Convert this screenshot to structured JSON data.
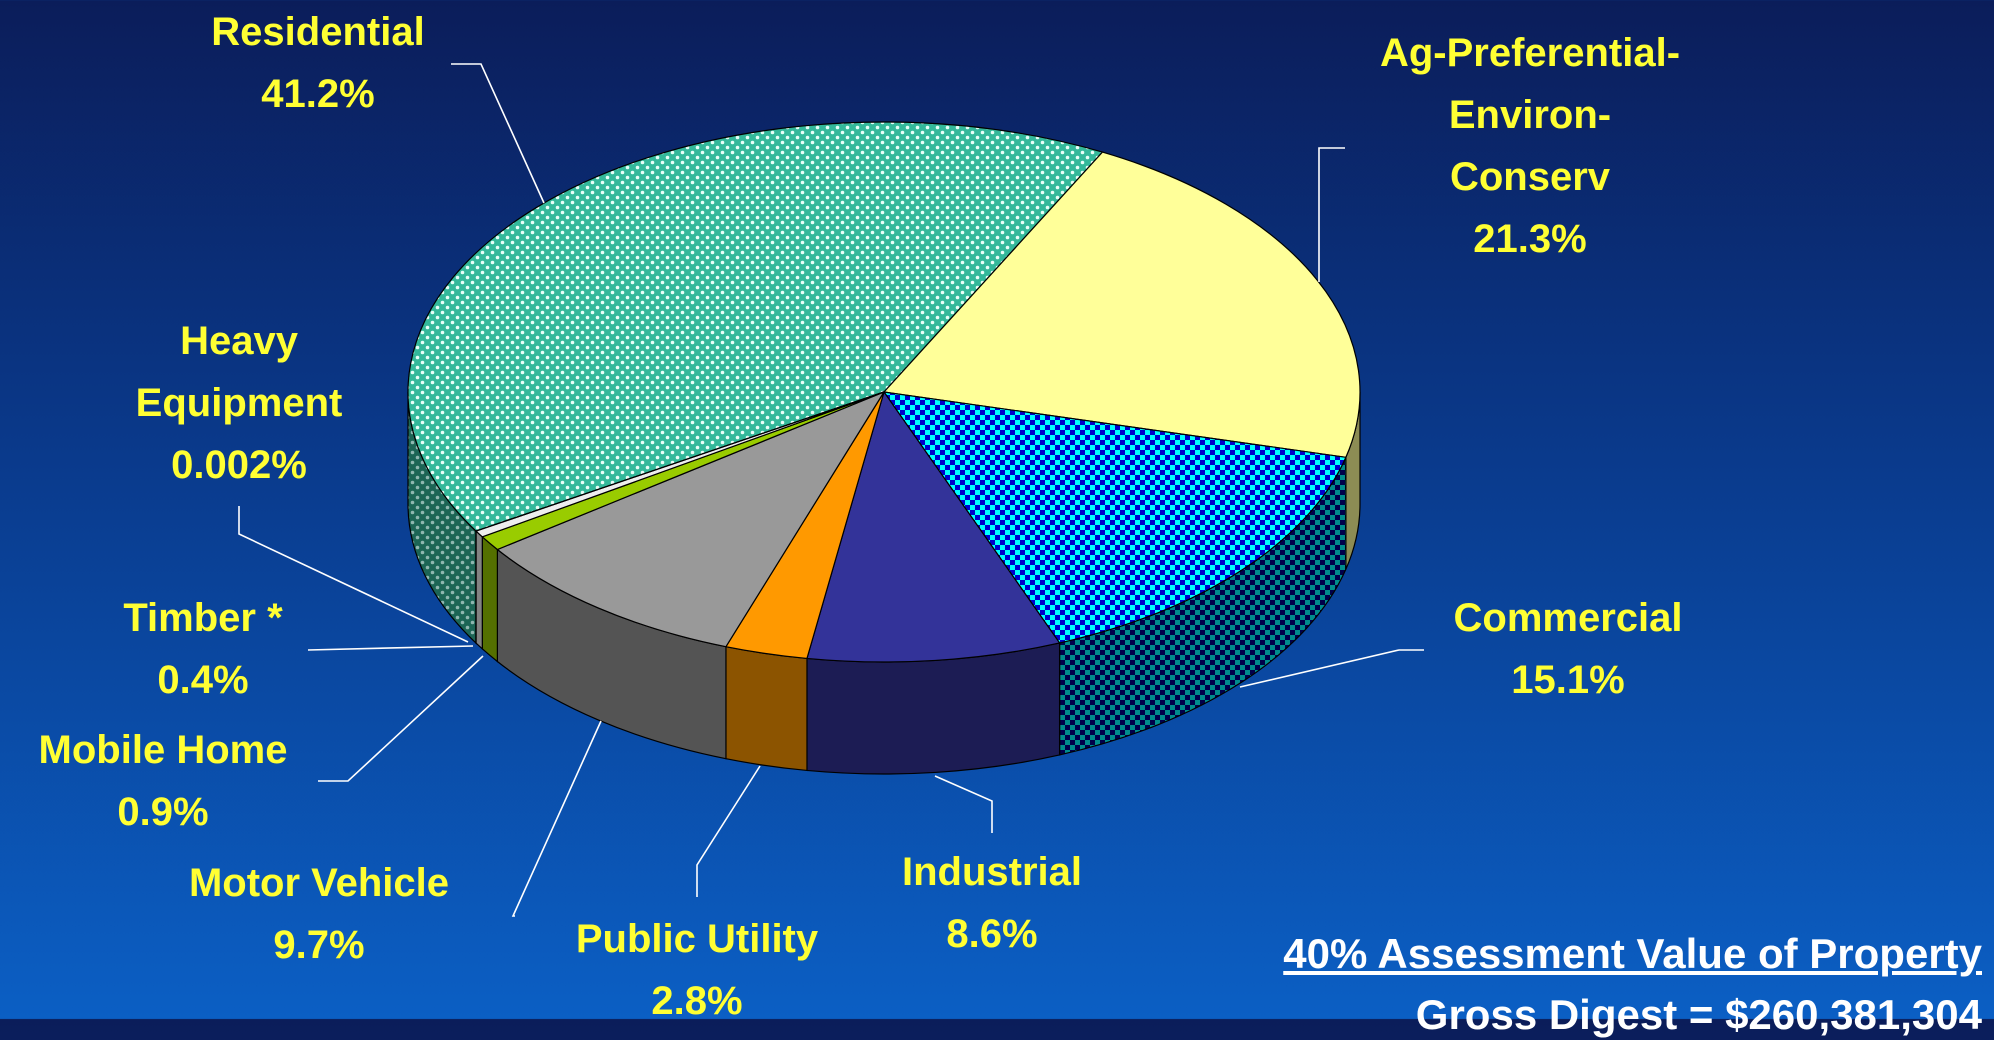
{
  "chart_data": {
    "type": "pie3d",
    "categories": [
      "Residential",
      "Ag-Preferential-Environ-Conserv",
      "Commercial",
      "Industrial",
      "Public Utility",
      "Motor Vehicle",
      "Mobile Home",
      "Timber *",
      "Heavy Equipment"
    ],
    "values": [
      41.2,
      21.3,
      15.1,
      8.6,
      2.8,
      9.7,
      0.9,
      0.4,
      0.002
    ],
    "value_labels": [
      "41.2%",
      "21.3%",
      "15.1%",
      "8.6%",
      "2.8%",
      "9.7%",
      "0.9%",
      "0.4%",
      "0.002%"
    ],
    "colors": [
      "#33b89a",
      "#ffff99",
      "#00ffff",
      "#333399",
      "#ff9900",
      "#999999",
      "#99cc00",
      "#eeeeee",
      "#cccccc"
    ],
    "patterns": [
      "dots",
      null,
      "checker",
      null,
      null,
      null,
      null,
      null,
      null
    ],
    "annotations": [
      "40% Assessment Value of Property",
      "Gross Digest = $260,381,304"
    ]
  }
}
